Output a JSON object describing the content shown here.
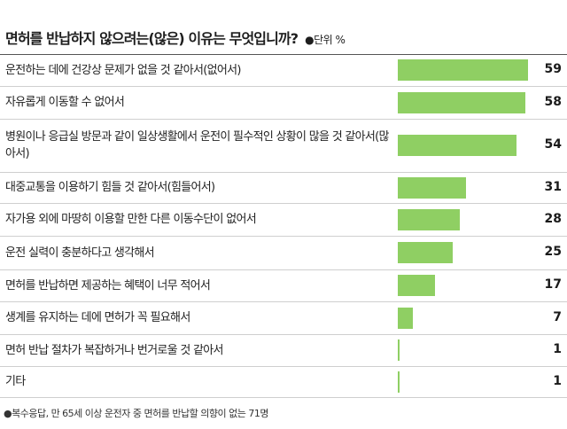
{
  "chart_data": {
    "type": "bar",
    "orientation": "horizontal",
    "title": "면허를 반납하지 않으려는(않은) 이유는 무엇입니까?",
    "unit_label": "●단위 %",
    "categories": [
      "운전하는 데에 건강상 문제가 없을 것 같아서(없어서)",
      "자유롭게 이동할 수 없어서",
      "병원이나 응급실 방문과 같이 일상생활에서 운전이 필수적인 상황이 많을 것 같아서(많아서)",
      "대중교통을 이용하기 힘들 것 같아서(힘들어서)",
      "자가용 외에 마땅히 이용할 만한 다른 이동수단이 없어서",
      "운전 실력이 충분하다고 생각해서",
      "면허를 반납하면 제공하는 혜택이 너무 적어서",
      "생계를 유지하는 데에 면허가 꼭 필요해서",
      "면허 반납 절차가 복잡하거나 번거로울 것 같아서",
      "기타"
    ],
    "values": [
      59,
      58,
      54,
      31,
      28,
      25,
      17,
      7,
      1,
      1
    ],
    "xlim": [
      0,
      60
    ],
    "bar_color": "#8fcf63",
    "note": "●복수응답, 만 65세 이상 운전자 중 면허를 반납할 의향이 없는 71명"
  }
}
